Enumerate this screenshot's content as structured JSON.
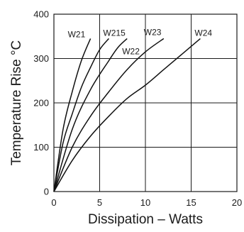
{
  "chart_data": {
    "type": "line",
    "title": "",
    "xlabel": "Dissipation – Watts",
    "ylabel": "Temperature Rise °C",
    "xlim": [
      0,
      20
    ],
    "ylim": [
      0,
      400
    ],
    "x_ticks": [
      0,
      5,
      10,
      15,
      20
    ],
    "y_ticks": [
      0,
      100,
      200,
      300,
      400
    ],
    "grid": true,
    "legend": "none",
    "colors": {
      "line": "#111111",
      "grid": "#1a1a1a",
      "background": "#ffffff"
    },
    "series": [
      {
        "name": "W21",
        "points": [
          [
            0,
            0
          ],
          [
            1,
            140
          ],
          [
            2,
            225
          ],
          [
            3,
            295
          ],
          [
            4,
            345
          ]
        ]
      },
      {
        "name": "W215",
        "points": [
          [
            0,
            0
          ],
          [
            1,
            110
          ],
          [
            2,
            175
          ],
          [
            3,
            235
          ],
          [
            4,
            280
          ],
          [
            5,
            320
          ],
          [
            6,
            345
          ]
        ]
      },
      {
        "name": "W22",
        "points": [
          [
            0,
            0
          ],
          [
            2,
            140
          ],
          [
            4,
            230
          ],
          [
            6,
            295
          ],
          [
            7,
            325
          ],
          [
            8,
            345
          ]
        ]
      },
      {
        "name": "W23",
        "points": [
          [
            0,
            0
          ],
          [
            2,
            100
          ],
          [
            4,
            170
          ],
          [
            6,
            225
          ],
          [
            8,
            275
          ],
          [
            10,
            315
          ],
          [
            12,
            345
          ]
        ]
      },
      {
        "name": "W24",
        "points": [
          [
            0,
            0
          ],
          [
            2,
            70
          ],
          [
            4,
            125
          ],
          [
            6,
            170
          ],
          [
            8,
            210
          ],
          [
            10,
            240
          ],
          [
            12,
            275
          ],
          [
            14,
            310
          ],
          [
            16,
            345
          ]
        ]
      }
    ]
  }
}
